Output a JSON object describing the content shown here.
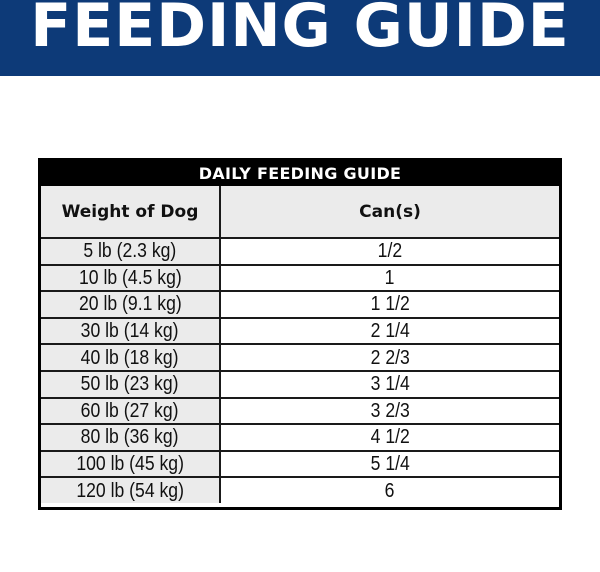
{
  "banner": {
    "title": "FEEDING GUIDE",
    "background_color": "#0d3a78",
    "text_color": "#ffffff"
  },
  "table": {
    "title": "DAILY FEEDING GUIDE",
    "headers": {
      "weight": "Weight of Dog",
      "cans": "Can(s)"
    },
    "rows": [
      {
        "weight": "5 lb (2.3 kg)",
        "cans": "1/2"
      },
      {
        "weight": "10 lb (4.5 kg)",
        "cans": "1"
      },
      {
        "weight": "20 lb (9.1 kg)",
        "cans": "1 1/2"
      },
      {
        "weight": "30 lb (14 kg)",
        "cans": "2 1/4"
      },
      {
        "weight": "40 lb (18 kg)",
        "cans": "2 2/3"
      },
      {
        "weight": "50 lb (23 kg)",
        "cans": "3 1/4"
      },
      {
        "weight": "60 lb (27 kg)",
        "cans": "3 2/3"
      },
      {
        "weight": "80 lb (36 kg)",
        "cans": "4 1/2"
      },
      {
        "weight": "100 lb (45 kg)",
        "cans": "5 1/4"
      },
      {
        "weight": "120 lb (54 kg)",
        "cans": "6"
      }
    ]
  }
}
